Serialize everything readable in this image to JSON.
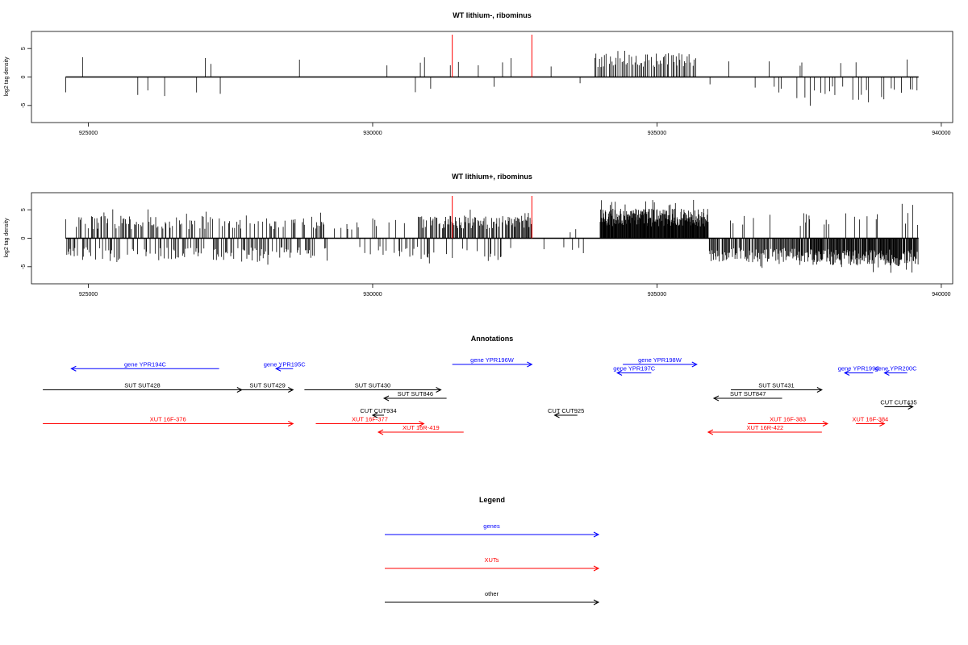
{
  "chart_data": [
    {
      "type": "bar",
      "title": "WT lithium-, ribominus",
      "ylabel": "log2 tag density",
      "xlim": [
        924000,
        940200
      ],
      "ylim": [
        -8,
        8
      ],
      "xticks": [
        925000,
        930000,
        935000,
        940000
      ],
      "yticks": [
        -5,
        0,
        5
      ],
      "baseline": [
        924600,
        939600
      ],
      "markers": [
        {
          "x": 931400,
          "color": "#ff0000"
        },
        {
          "x": 932800,
          "color": "#ff0000"
        }
      ],
      "density": {
        "seed": 7,
        "segments": [
          {
            "x0": 924600,
            "x1": 928000,
            "spacing": 90,
            "prob": 0.3,
            "pos": 0.45,
            "amp": 3.5
          },
          {
            "x0": 928000,
            "x1": 929800,
            "spacing": 100,
            "prob": 0.18,
            "pos": 0.85,
            "amp": 3.4
          },
          {
            "x0": 929800,
            "x1": 930800,
            "spacing": 100,
            "prob": 0.2,
            "pos": 0.4,
            "amp": 3.0
          },
          {
            "x0": 930800,
            "x1": 932500,
            "spacing": 70,
            "prob": 0.4,
            "pos": 0.75,
            "amp": 3.8
          },
          {
            "x0": 932500,
            "x1": 933900,
            "spacing": 120,
            "prob": 0.08,
            "pos": 0.5,
            "amp": 2.0
          },
          {
            "x0": 933900,
            "x1": 935700,
            "spacing": 25,
            "prob": 0.95,
            "pos": 1.0,
            "amp": 4.3
          },
          {
            "x0": 935700,
            "x1": 937000,
            "spacing": 90,
            "prob": 0.2,
            "pos": 0.2,
            "amp": 3.0
          },
          {
            "x0": 937000,
            "x1": 939600,
            "spacing": 45,
            "prob": 0.5,
            "pos": 0.12,
            "amp": 4.0
          }
        ]
      }
    },
    {
      "type": "bar",
      "title": "WT lithium+, ribominus",
      "ylabel": "log2 tag density",
      "xlim": [
        924000,
        940200
      ],
      "ylim": [
        -8,
        8
      ],
      "xticks": [
        925000,
        930000,
        935000,
        940000
      ],
      "yticks": [
        -5,
        0,
        5
      ],
      "baseline": [
        924600,
        939600
      ],
      "markers": [
        {
          "x": 931400,
          "color": "#ff0000"
        },
        {
          "x": 932800,
          "color": "#ff0000"
        }
      ],
      "density": {
        "seed": 13,
        "segments": [
          {
            "x0": 924600,
            "x1": 929200,
            "spacing": 18,
            "prob": 0.95,
            "pos": 0.55,
            "amp": 4.0
          },
          {
            "x0": 929200,
            "x1": 930000,
            "spacing": 30,
            "prob": 0.45,
            "pos": 0.6,
            "amp": 3.0
          },
          {
            "x0": 930000,
            "x1": 930800,
            "spacing": 25,
            "prob": 0.6,
            "pos": 0.3,
            "amp": 3.5
          },
          {
            "x0": 930800,
            "x1": 932800,
            "spacing": 15,
            "prob": 0.95,
            "pos": 0.85,
            "amp": 4.0
          },
          {
            "x0": 932800,
            "x1": 934000,
            "spacing": 50,
            "prob": 0.25,
            "pos": 0.5,
            "amp": 2.5
          },
          {
            "x0": 934000,
            "x1": 935900,
            "spacing": 8,
            "prob": 1.0,
            "pos": 1.0,
            "amp": 5.2
          },
          {
            "x0": 935900,
            "x1": 937500,
            "spacing": 15,
            "prob": 0.95,
            "pos": 0.08,
            "amp": 4.2
          },
          {
            "x0": 937500,
            "x1": 939600,
            "spacing": 10,
            "prob": 0.98,
            "pos": 0.1,
            "amp": 4.8
          }
        ]
      }
    }
  ],
  "annotations": {
    "title": "Annotations",
    "xlim": [
      924000,
      940200
    ],
    "items": [
      {
        "label": "gene YPR194C",
        "x0": 924700,
        "x1": 927300,
        "dir": "left",
        "row": 0.5,
        "color": "#0000ff"
      },
      {
        "label": "gene YPR195C",
        "x0": 928300,
        "x1": 928600,
        "dir": "left",
        "row": 0.5,
        "color": "#0000ff"
      },
      {
        "label": "gene YPR196W",
        "x0": 931400,
        "x1": 932800,
        "dir": "right",
        "row": 0,
        "color": "#0000ff"
      },
      {
        "label": "gene YPR198W",
        "x0": 934400,
        "x1": 935700,
        "dir": "right",
        "row": 0,
        "color": "#0000ff"
      },
      {
        "label": "gene YPR197C",
        "x0": 934300,
        "x1": 934900,
        "dir": "left",
        "row": 1,
        "color": "#0000ff"
      },
      {
        "label": "gene YPR199C",
        "x0": 938300,
        "x1": 938800,
        "dir": "left",
        "row": 1,
        "color": "#0000ff"
      },
      {
        "label": "gene YPR200C",
        "x0": 939000,
        "x1": 939400,
        "dir": "left",
        "row": 1,
        "color": "#0000ff"
      },
      {
        "label": "SUT SUT428",
        "x0": 924200,
        "x1": 927700,
        "dir": "right",
        "row": 3,
        "color": "#000000"
      },
      {
        "label": "SUT SUT429",
        "x0": 927700,
        "x1": 928600,
        "dir": "right",
        "row": 3,
        "color": "#000000"
      },
      {
        "label": "SUT SUT430",
        "x0": 928800,
        "x1": 931200,
        "dir": "right",
        "row": 3,
        "color": "#000000"
      },
      {
        "label": "SUT SUT431",
        "x0": 936300,
        "x1": 937900,
        "dir": "right",
        "row": 3,
        "color": "#000000"
      },
      {
        "label": "SUT SUT846",
        "x0": 930200,
        "x1": 931300,
        "dir": "left",
        "row": 4,
        "color": "#000000"
      },
      {
        "label": "SUT SUT847",
        "x0": 936000,
        "x1": 937200,
        "dir": "left",
        "row": 4,
        "color": "#000000"
      },
      {
        "label": "CUT CUT435",
        "x0": 939000,
        "x1": 939500,
        "dir": "right",
        "row": 5,
        "color": "#000000"
      },
      {
        "label": "CUT CUT934",
        "x0": 930000,
        "x1": 930200,
        "dir": "left",
        "row": 6,
        "color": "#000000"
      },
      {
        "label": "CUT CUT925",
        "x0": 933200,
        "x1": 933600,
        "dir": "left",
        "row": 6,
        "color": "#000000"
      },
      {
        "label": "XUT 16F-376",
        "x0": 924200,
        "x1": 928600,
        "dir": "right",
        "row": 7,
        "color": "#ff0000"
      },
      {
        "label": "XUT 16F-377",
        "x0": 929000,
        "x1": 930900,
        "dir": "right",
        "row": 7,
        "color": "#ff0000"
      },
      {
        "label": "XUT 16F-383",
        "x0": 936600,
        "x1": 938000,
        "dir": "right",
        "row": 7,
        "color": "#ff0000"
      },
      {
        "label": "XUT 16F-384",
        "x0": 938500,
        "x1": 939000,
        "dir": "right",
        "row": 7,
        "color": "#ff0000"
      },
      {
        "label": "XUT 16R-419",
        "x0": 930100,
        "x1": 931600,
        "dir": "left",
        "row": 8,
        "color": "#ff0000"
      },
      {
        "label": "XUT 16R-422",
        "x0": 935900,
        "x1": 937900,
        "dir": "left",
        "row": 8,
        "color": "#ff0000"
      }
    ]
  },
  "legend": {
    "title": "Legend",
    "items": [
      {
        "label": "genes",
        "color": "#0000ff"
      },
      {
        "label": "XUTs",
        "color": "#ff0000"
      },
      {
        "label": "other",
        "color": "#000000"
      }
    ]
  }
}
